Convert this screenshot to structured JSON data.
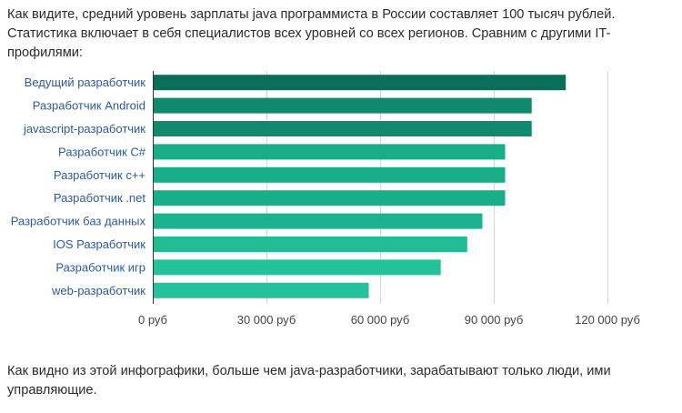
{
  "text": {
    "intro": "Как видите, средний уровень зарплаты java программиста в России составляет 100 тысяч рублей. Статистика включает в себя специалистов всех уровней со всех регионов. Сравним с другими IT-профилями:",
    "outro": "Как видно из этой инфографики, больше чем java-разработчики, зарабатывают только люди, ими управляющие."
  },
  "chart_data": {
    "type": "bar",
    "orientation": "horizontal",
    "title": "",
    "xlabel": "",
    "ylabel": "",
    "categories": [
      "Ведущий разработчик",
      "Разработчик Android",
      "javascript-разработчик",
      "Разработчик C#",
      "Разработчик c++",
      "Разработчик .net",
      "Разработчик баз данных",
      "IOS Разработчик",
      "Разработчик игр",
      "web-разработчик"
    ],
    "values": [
      109000,
      100000,
      100000,
      93000,
      93000,
      93000,
      87000,
      83000,
      76000,
      57000
    ],
    "colors": [
      "#0b6e58",
      "#108a6c",
      "#108a6c",
      "#17ae88",
      "#17ae88",
      "#17ae88",
      "#1cb48e",
      "#1fbc95",
      "#24c29b",
      "#24c29b"
    ],
    "xlim": [
      0,
      120000
    ],
    "xticks": [
      0,
      30000,
      60000,
      90000,
      120000
    ],
    "xtick_labels": [
      "0 руб",
      "30 000 руб",
      "60 000 руб",
      "90 000 руб",
      "120 000 руб"
    ],
    "grid": true,
    "legend": "none"
  }
}
